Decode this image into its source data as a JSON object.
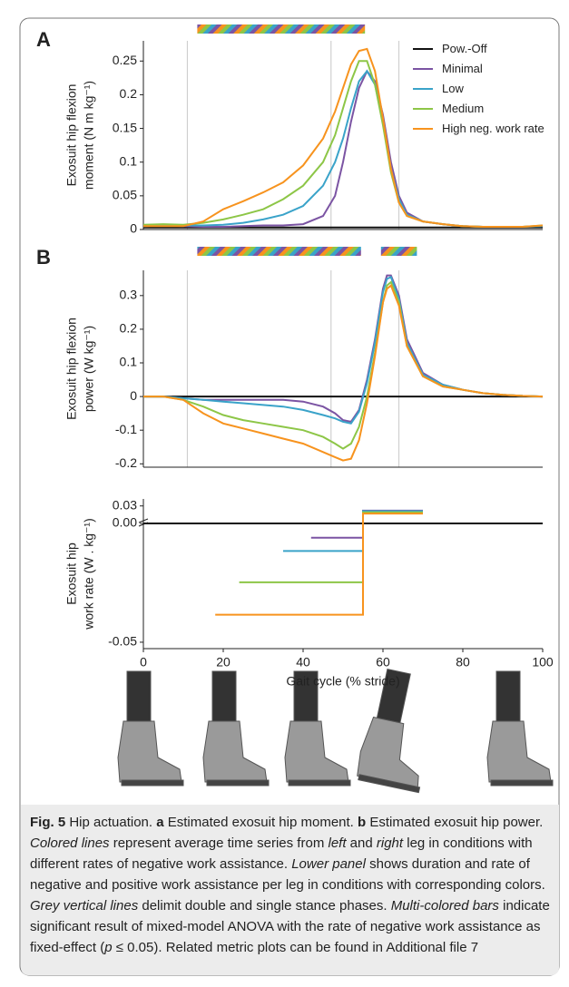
{
  "chart_data": [
    {
      "type": "line",
      "panel_label": "A",
      "ylabel": [
        "Exosuit hip flexion",
        "moment (N m kg⁻¹)"
      ],
      "xlim": [
        0,
        100
      ],
      "ylim": [
        0,
        0.28
      ],
      "yticks": [
        0,
        0.05,
        0.1,
        0.15,
        0.2,
        0.25
      ],
      "phase_lines": [
        11,
        47,
        64
      ],
      "significance_bars": [
        [
          13.5,
          55.5
        ]
      ],
      "x": [
        0,
        5,
        10,
        15,
        20,
        25,
        30,
        35,
        40,
        45,
        48,
        50,
        52,
        54,
        56,
        58,
        60,
        62,
        64,
        66,
        70,
        75,
        80,
        85,
        90,
        95,
        100
      ],
      "series": [
        {
          "name": "Pow.-Off",
          "color": "#111111",
          "values": [
            0.003,
            0.003,
            0.003,
            0.003,
            0.003,
            0.003,
            0.003,
            0.003,
            0.003,
            0.003,
            0.003,
            0.003,
            0.003,
            0.003,
            0.003,
            0.003,
            0.003,
            0.003,
            0.003,
            0.003,
            0.003,
            0.003,
            0.003,
            0.003,
            0.003,
            0.003,
            0.003
          ]
        },
        {
          "name": "Minimal",
          "color": "#7b54a3",
          "values": [
            0.005,
            0.006,
            0.005,
            0.004,
            0.004,
            0.005,
            0.006,
            0.006,
            0.008,
            0.02,
            0.05,
            0.1,
            0.16,
            0.21,
            0.235,
            0.22,
            0.17,
            0.1,
            0.05,
            0.025,
            0.012,
            0.008,
            0.005,
            0.004,
            0.004,
            0.004,
            0.005
          ]
        },
        {
          "name": "Low",
          "color": "#3aa3c9",
          "values": [
            0.005,
            0.006,
            0.006,
            0.006,
            0.007,
            0.01,
            0.015,
            0.022,
            0.035,
            0.065,
            0.1,
            0.135,
            0.18,
            0.22,
            0.235,
            0.215,
            0.16,
            0.09,
            0.045,
            0.022,
            0.012,
            0.008,
            0.005,
            0.004,
            0.004,
            0.004,
            0.005
          ]
        },
        {
          "name": "Medium",
          "color": "#8dc647",
          "values": [
            0.007,
            0.008,
            0.007,
            0.01,
            0.015,
            0.022,
            0.03,
            0.045,
            0.065,
            0.1,
            0.14,
            0.18,
            0.22,
            0.25,
            0.25,
            0.215,
            0.155,
            0.085,
            0.04,
            0.02,
            0.012,
            0.008,
            0.005,
            0.004,
            0.004,
            0.004,
            0.006
          ]
        },
        {
          "name": "High neg. work rate",
          "color": "#f7931e",
          "values": [
            0.005,
            0.005,
            0.005,
            0.012,
            0.03,
            0.042,
            0.055,
            0.07,
            0.095,
            0.135,
            0.175,
            0.21,
            0.245,
            0.265,
            0.268,
            0.235,
            0.165,
            0.09,
            0.04,
            0.02,
            0.012,
            0.008,
            0.005,
            0.004,
            0.004,
            0.004,
            0.006
          ]
        }
      ]
    },
    {
      "type": "line",
      "panel_label": "B",
      "ylabel": [
        "Exosuit hip flexion",
        "power (W kg⁻¹)"
      ],
      "xlim": [
        0,
        100
      ],
      "ylim": [
        -0.21,
        0.375
      ],
      "yticks": [
        -0.2,
        -0.1,
        0,
        0.1,
        0.2,
        0.3
      ],
      "phase_lines": [
        11,
        47,
        64
      ],
      "significance_bars": [
        [
          13.5,
          54.5
        ],
        [
          59.5,
          68.5
        ]
      ],
      "x": [
        0,
        5,
        10,
        15,
        20,
        25,
        30,
        35,
        40,
        45,
        48,
        50,
        52,
        54,
        56,
        58,
        60,
        61,
        62,
        64,
        66,
        70,
        75,
        80,
        85,
        90,
        95,
        100
      ],
      "series": [
        {
          "color": "#111111",
          "values": [
            0,
            0,
            0,
            0,
            0,
            0,
            0,
            0,
            0,
            0,
            0,
            0,
            0,
            0,
            0,
            0,
            0,
            0,
            0,
            0,
            0,
            0,
            0,
            0,
            0,
            0,
            0,
            0
          ]
        },
        {
          "color": "#7b54a3",
          "values": [
            0,
            0,
            -0.005,
            -0.01,
            -0.01,
            -0.01,
            -0.01,
            -0.01,
            -0.015,
            -0.03,
            -0.05,
            -0.07,
            -0.075,
            -0.04,
            0.05,
            0.17,
            0.32,
            0.36,
            0.36,
            0.3,
            0.17,
            0.07,
            0.035,
            0.02,
            0.01,
            0.005,
            0.002,
            0
          ]
        },
        {
          "color": "#3aa3c9",
          "values": [
            0,
            0,
            -0.005,
            -0.01,
            -0.015,
            -0.02,
            -0.025,
            -0.03,
            -0.04,
            -0.055,
            -0.065,
            -0.075,
            -0.08,
            -0.045,
            0.04,
            0.16,
            0.31,
            0.35,
            0.355,
            0.29,
            0.16,
            0.065,
            0.035,
            0.02,
            0.01,
            0.005,
            0.002,
            0
          ]
        },
        {
          "color": "#8dc647",
          "values": [
            0,
            0,
            -0.01,
            -0.03,
            -0.055,
            -0.07,
            -0.08,
            -0.09,
            -0.1,
            -0.12,
            -0.14,
            -0.155,
            -0.14,
            -0.09,
            0,
            0.13,
            0.28,
            0.33,
            0.34,
            0.28,
            0.15,
            0.06,
            0.03,
            0.02,
            0.01,
            0.005,
            0.002,
            0
          ]
        },
        {
          "color": "#f7931e",
          "values": [
            0,
            0,
            -0.01,
            -0.05,
            -0.08,
            -0.095,
            -0.11,
            -0.125,
            -0.14,
            -0.165,
            -0.18,
            -0.19,
            -0.185,
            -0.13,
            -0.02,
            0.12,
            0.28,
            0.32,
            0.33,
            0.27,
            0.15,
            0.06,
            0.03,
            0.02,
            0.01,
            0.005,
            0.002,
            0
          ]
        }
      ]
    },
    {
      "type": "step",
      "ylabel": [
        "Exosuit hip",
        "work rate (W . kg⁻¹)"
      ],
      "broken_axis": true,
      "xlabel": "Gait cycle (% stride)",
      "xlim": [
        0,
        100
      ],
      "xticks": [
        0,
        20,
        40,
        60,
        80,
        100
      ],
      "ylim": [
        -0.0527,
        0.042
      ],
      "yticks": [
        {
          "value": -0.05,
          "label": "-0.05"
        },
        {
          "value": 0,
          "label": "0.00"
        },
        {
          "value": 0.03,
          "label": "0.03"
        }
      ],
      "series": [
        {
          "color": "#111111",
          "x": [
            0,
            100
          ],
          "values": [
            0,
            0
          ]
        },
        {
          "color": "#7b54a3",
          "x": [
            42,
            55,
            55,
            70
          ],
          "values": [
            -0.006,
            -0.006,
            0.022,
            0.022
          ]
        },
        {
          "color": "#3aa3c9",
          "x": [
            35,
            55,
            55,
            70
          ],
          "values": [
            -0.0116,
            -0.0116,
            0.021,
            0.021
          ]
        },
        {
          "color": "#8dc647",
          "x": [
            24,
            55,
            55,
            70
          ],
          "values": [
            -0.0248,
            -0.0248,
            0.019,
            0.019
          ]
        },
        {
          "color": "#f7931e",
          "x": [
            18,
            55,
            55,
            70
          ],
          "values": [
            -0.0384,
            -0.0384,
            0.017,
            0.017
          ]
        }
      ]
    }
  ],
  "caption": [
    {
      "text": "Fig. 5",
      "style": "bold"
    },
    {
      "text": " Hip actuation. ",
      "style": "normal"
    },
    {
      "text": "a",
      "style": "bold"
    },
    {
      "text": " Estimated exosuit hip moment. ",
      "style": "normal"
    },
    {
      "text": "b",
      "style": "bold"
    },
    {
      "text": " Estimated exosuit hip power. ",
      "style": "normal"
    },
    {
      "text": "Colored lines",
      "style": "italic"
    },
    {
      "text": " represent average time series from ",
      "style": "normal"
    },
    {
      "text": "left",
      "style": "italic"
    },
    {
      "text": " and ",
      "style": "normal"
    },
    {
      "text": "right",
      "style": "italic"
    },
    {
      "text": " leg in conditions with different rates of negative work assistance. ",
      "style": "normal"
    },
    {
      "text": "Lower panel",
      "style": "italic"
    },
    {
      "text": " shows duration and rate of negative and positive work assistance per leg in conditions with corresponding colors. ",
      "style": "normal"
    },
    {
      "text": "Grey vertical lines",
      "style": "italic"
    },
    {
      "text": " delimit double and single stance phases. ",
      "style": "normal"
    },
    {
      "text": "Multi-colored bars",
      "style": "italic"
    },
    {
      "text": " indicate significant result of mixed-model ANOVA with the rate of negative work assistance as fixed-effect (",
      "style": "normal"
    },
    {
      "text": "p",
      "style": "italic"
    },
    {
      "text": " ≤ 0.05). Related metric plots can be found in Additional file 7",
      "style": "normal"
    }
  ]
}
